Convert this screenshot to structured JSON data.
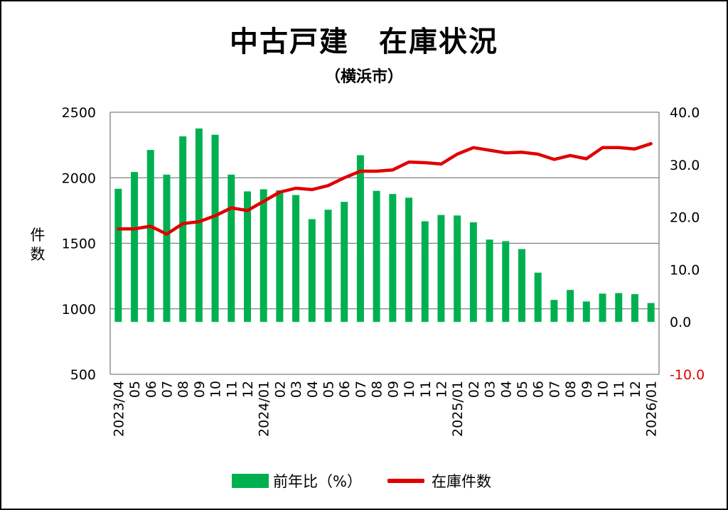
{
  "title": "中古戸建　在庫状況",
  "subtitle": "（横浜市）",
  "y_left_label": "件数",
  "legend": {
    "bar_label": "前年比（%）",
    "line_label": "在庫件数"
  },
  "colors": {
    "bar": "#00b050",
    "line": "#e00000",
    "grid": "#808080",
    "negative_tick": "#e00000"
  },
  "chart_data": {
    "type": "bar",
    "categories": [
      "2023/04",
      "05",
      "06",
      "07",
      "08",
      "09",
      "10",
      "11",
      "12",
      "2024/01",
      "02",
      "03",
      "04",
      "05",
      "06",
      "07",
      "08",
      "09",
      "10",
      "11",
      "12",
      "2025/01",
      "02",
      "03",
      "04",
      "05",
      "06",
      "07",
      "08",
      "09",
      "10",
      "11",
      "12",
      "2026/01"
    ],
    "y_left": {
      "label": "件数",
      "lim": [
        500,
        2500
      ],
      "ticks": [
        "500",
        "1000",
        "1500",
        "2000",
        "2500"
      ]
    },
    "y_right": {
      "lim": [
        -10,
        40
      ],
      "ticks": [
        "-10.0",
        "0.0",
        "10.0",
        "20.0",
        "30.0",
        "40.0"
      ]
    },
    "series": [
      {
        "name": "前年比（%）",
        "type": "bar",
        "axis": "right",
        "values": [
          25.4,
          28.6,
          32.8,
          28.1,
          35.4,
          36.9,
          35.7,
          28.1,
          24.9,
          25.3,
          25.1,
          24.2,
          19.6,
          21.4,
          22.9,
          31.8,
          25.0,
          24.4,
          23.7,
          19.2,
          20.4,
          20.3,
          19.0,
          15.7,
          15.4,
          13.9,
          9.4,
          4.2,
          6.1,
          3.9,
          5.4,
          5.5,
          5.3,
          3.6
        ]
      },
      {
        "name": "在庫件数",
        "type": "line",
        "axis": "left",
        "values": [
          1610,
          1610,
          1630,
          1570,
          1650,
          1665,
          1710,
          1770,
          1750,
          1820,
          1890,
          1920,
          1910,
          1940,
          2000,
          2050,
          2050,
          2060,
          2120,
          2115,
          2105,
          2180,
          2230,
          2210,
          2190,
          2195,
          2180,
          2140,
          2170,
          2145,
          2230,
          2230,
          2220,
          2260
        ]
      }
    ]
  }
}
